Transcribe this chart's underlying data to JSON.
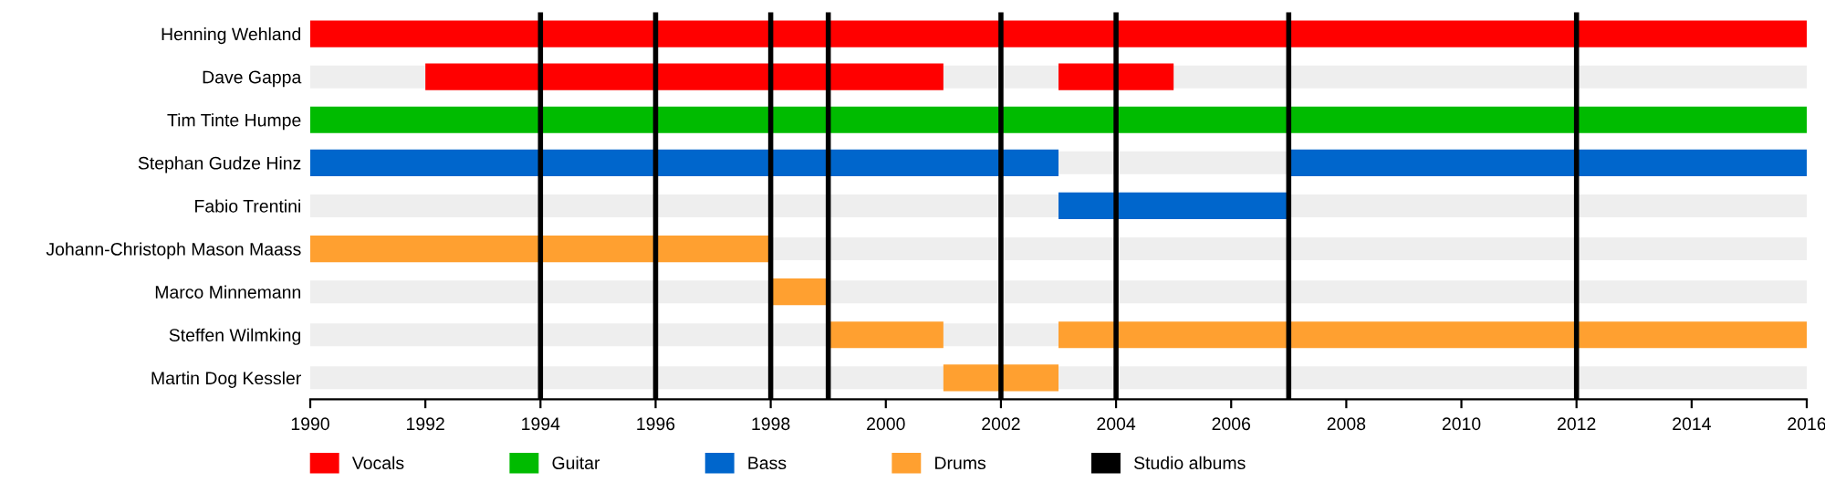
{
  "chart_data": {
    "type": "bar",
    "orientation": "horizontal",
    "categories": [
      "Henning Wehland",
      "Dave Gappa",
      "Tim Tinte Humpe",
      "Stephan Gudze Hinz",
      "Fabio Trentini",
      "Johann-Christoph Mason Maass",
      "Marco Minnemann",
      "Steffen Wilmking",
      "Martin Dog Kessler"
    ],
    "series": [
      {
        "name": "Vocals",
        "color": "#ff0000",
        "base": [
          1990,
          1992,
          null,
          null,
          null,
          null,
          null,
          null,
          null
        ],
        "values": [
          26,
          9,
          null,
          null,
          null,
          null,
          null,
          null,
          null
        ]
      },
      {
        "name": "Guitar",
        "color": "#00bb00",
        "base": [
          null,
          null,
          1990,
          null,
          null,
          null,
          null,
          null,
          null
        ],
        "values": [
          null,
          null,
          26,
          null,
          null,
          null,
          null,
          null,
          null
        ]
      },
      {
        "name": "Bass",
        "color": "#0066cc",
        "base": [
          null,
          null,
          null,
          1990,
          2003,
          null,
          null,
          null,
          null
        ],
        "values": [
          null,
          null,
          null,
          13,
          4,
          null,
          null,
          null,
          null
        ]
      },
      {
        "name": "Drums",
        "color": "#ffa030",
        "base": [
          null,
          null,
          null,
          null,
          null,
          1990,
          1998,
          1999,
          2001
        ],
        "values": [
          null,
          null,
          null,
          null,
          null,
          8,
          1,
          2,
          2
        ]
      },
      {
        "color": "#ff0000",
        "base": [
          null,
          2003,
          null,
          null,
          null,
          null,
          null,
          null,
          null
        ],
        "values": [
          null,
          2,
          null,
          null,
          null,
          null,
          null,
          null,
          null
        ]
      },
      {
        "color": "#0066cc",
        "base": [
          null,
          null,
          null,
          2007,
          null,
          null,
          null,
          null,
          null
        ],
        "values": [
          null,
          null,
          null,
          9,
          null,
          null,
          null,
          null,
          null
        ]
      },
      {
        "color": "#ffa030",
        "base": [
          null,
          null,
          null,
          null,
          null,
          null,
          null,
          2003,
          null
        ],
        "values": [
          null,
          null,
          null,
          null,
          null,
          null,
          null,
          13,
          null
        ]
      }
    ],
    "ref_lines": [
      {
        "axis": "x",
        "value": 1994,
        "label": "Studio albums",
        "color": "#000000"
      },
      {
        "axis": "x",
        "value": 1996,
        "color": "#000000"
      },
      {
        "axis": "x",
        "value": 1998,
        "color": "#000000"
      },
      {
        "axis": "x",
        "value": 1999,
        "color": "#000000"
      },
      {
        "axis": "x",
        "value": 2002,
        "color": "#000000"
      },
      {
        "axis": "x",
        "value": 2004,
        "color": "#000000"
      },
      {
        "axis": "x",
        "value": 2007,
        "color": "#000000"
      },
      {
        "axis": "x",
        "value": 2012,
        "color": "#000000"
      }
    ],
    "xlim": [
      1990,
      2016
    ],
    "xticks": [
      1990,
      1992,
      1994,
      1996,
      1998,
      2000,
      2002,
      2004,
      2006,
      2008,
      2010,
      2012,
      2014,
      2016
    ],
    "grid": "y",
    "legend": "bottom"
  }
}
